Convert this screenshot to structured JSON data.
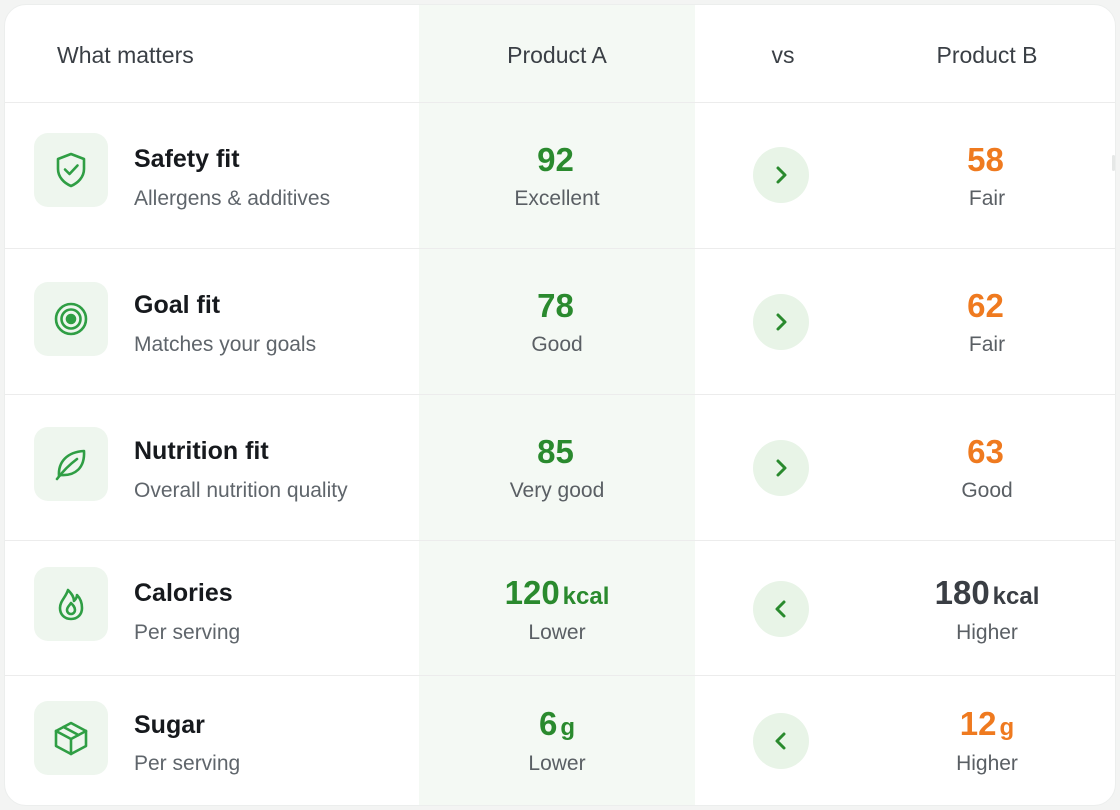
{
  "header": {
    "what_label": "What matters",
    "product_a": "Product A",
    "vs": "vs",
    "product_b": "Product B"
  },
  "colors": {
    "accent_green": "#2a8a2e",
    "orange": "#ef7a1f",
    "dark": "#3a3e44",
    "highlight_col": "#f4f9f4",
    "arrow_bg": "#e8f4e7"
  },
  "rows": [
    {
      "icon": "shield-check-icon",
      "title": "Safety fit",
      "subtitle": "Allergens & additives",
      "a_value": "92",
      "a_unit": "",
      "a_label": "Excellent",
      "comparison": "right",
      "b_value": "58",
      "b_unit": "",
      "b_label": "Fair",
      "b_color": "#ef7a1f"
    },
    {
      "icon": "target-icon",
      "title": "Goal fit",
      "subtitle": "Matches your goals",
      "a_value": "78",
      "a_unit": "",
      "a_label": "Good",
      "comparison": "right",
      "b_value": "62",
      "b_unit": "",
      "b_label": "Fair",
      "b_color": "#ef7a1f"
    },
    {
      "icon": "leaf-icon",
      "title": "Nutrition fit",
      "subtitle": "Overall nutrition quality",
      "a_value": "85",
      "a_unit": "",
      "a_label": "Very good",
      "comparison": "right",
      "b_value": "63",
      "b_unit": "",
      "b_label": "Good",
      "b_color": "#ef7a1f"
    },
    {
      "icon": "flame-icon",
      "title": "Calories",
      "subtitle": "Per serving",
      "a_value": "120",
      "a_unit": "kcal",
      "a_label": "Lower",
      "comparison": "left",
      "b_value": "180",
      "b_unit": "kcal",
      "b_label": "Higher",
      "b_color": "#3a3e44"
    },
    {
      "icon": "cube-icon",
      "title": "Sugar",
      "subtitle": "Per serving",
      "a_value": "6",
      "a_unit": "g",
      "a_label": "Lower",
      "comparison": "left",
      "b_value": "12",
      "b_unit": "g",
      "b_label": "Higher",
      "b_color": "#ef7a1f"
    }
  ]
}
